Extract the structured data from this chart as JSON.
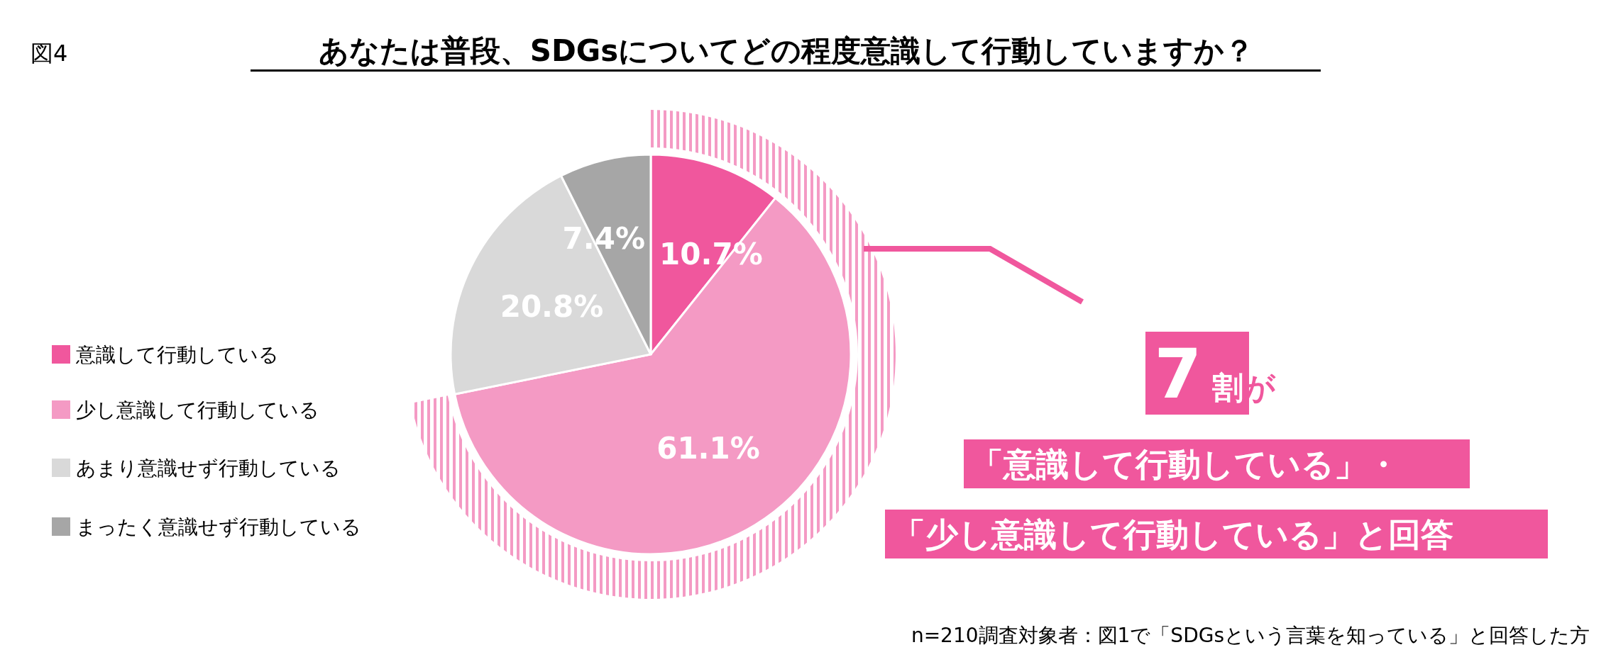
{
  "chart_data": {
    "type": "pie",
    "title": "あなたは普段、SDGsについてどの程度意識して行動していますか？",
    "categories": [
      "意識して行動している",
      "少し意識して行動している",
      "あまり意識せず行動している",
      "まったく意識せず行動している"
    ],
    "values": [
      10.7,
      61.1,
      20.8,
      7.4
    ],
    "colors": [
      "#f0579d",
      "#f49ac4",
      "#d9d9d9",
      "#a6a6a6"
    ],
    "value_labels": [
      "10.7%",
      "61.1%",
      "20.8%",
      "7.4%"
    ],
    "legend": "left",
    "annotations": [
      "図4",
      "7",
      "割が",
      "「意識して行動している」・",
      "「少し意識して行動している」と回答",
      "n=210調査対象者：図1で「SDGsという言葉を知っている」と回答した方"
    ]
  }
}
